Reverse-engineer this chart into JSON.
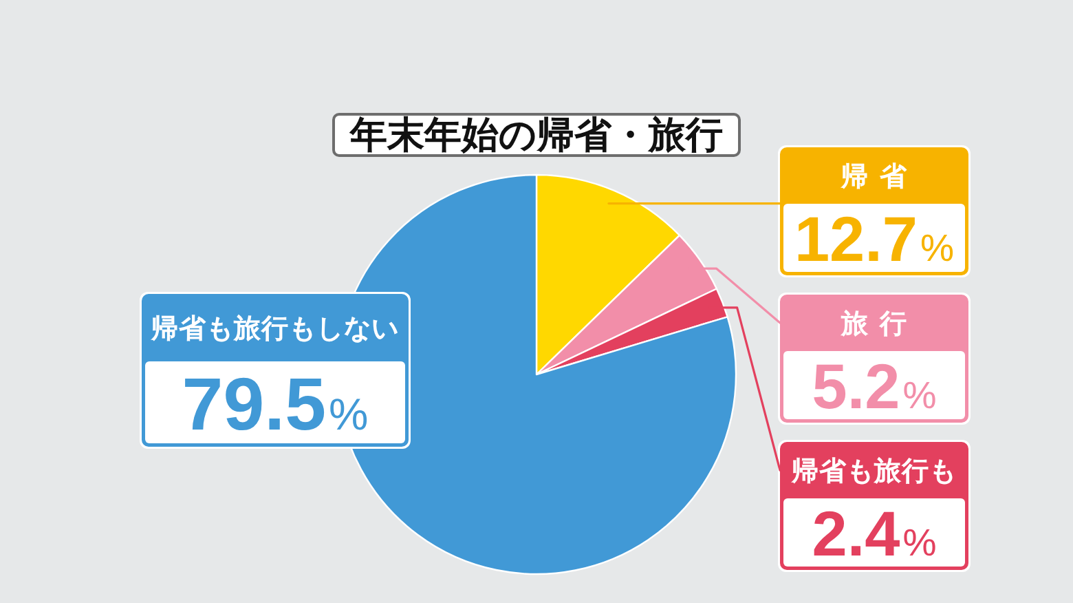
{
  "chart_data": {
    "type": "pie",
    "title": "年末年始の帰省・旅行",
    "categories": [
      "帰省",
      "旅行",
      "帰省も旅行も",
      "帰省も旅行もしない"
    ],
    "values": [
      12.7,
      5.2,
      2.4,
      79.5
    ],
    "colors": [
      "#ffd800",
      "#f28ea9",
      "#e3405e",
      "#4199d6"
    ],
    "value_labels": [
      "12.7%",
      "5.2%",
      "2.4%",
      "79.5%"
    ]
  }
}
